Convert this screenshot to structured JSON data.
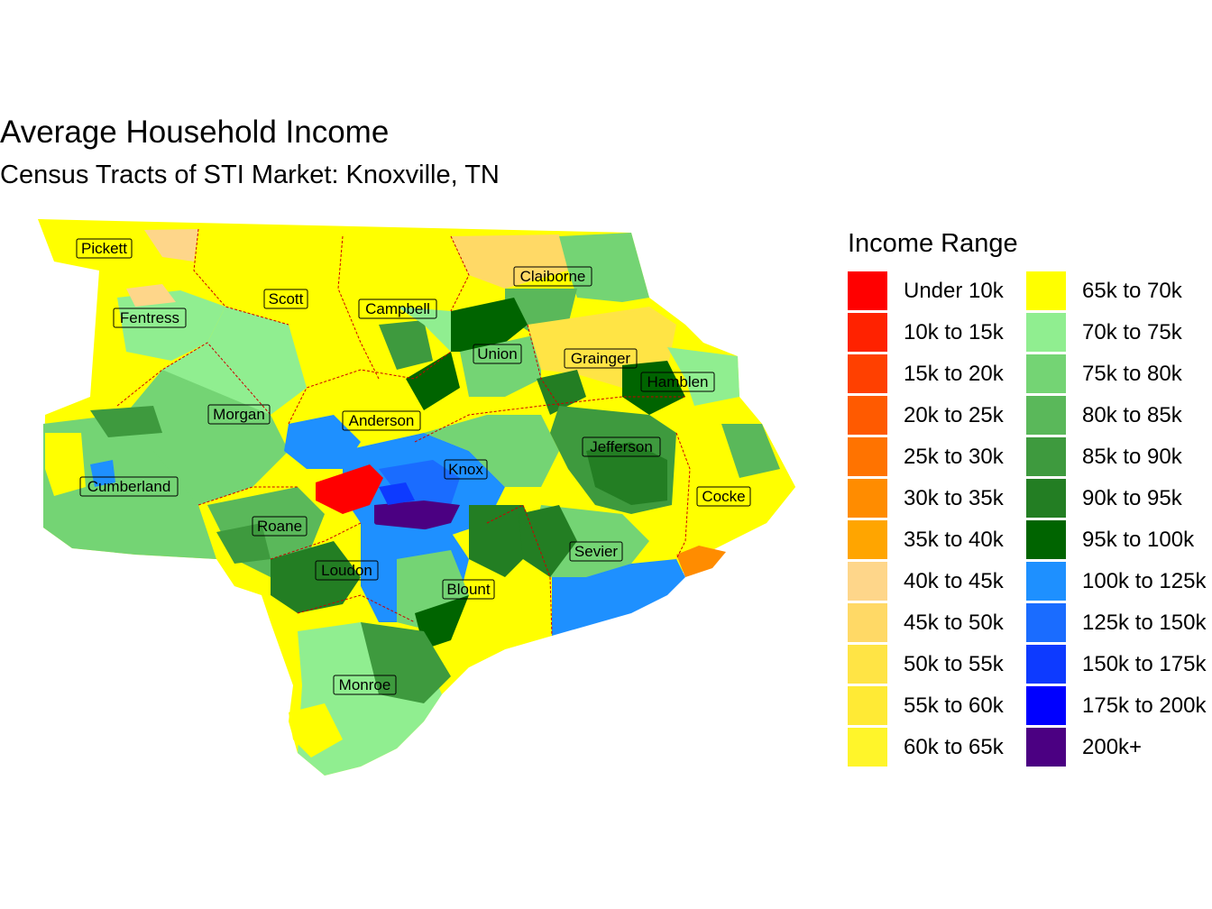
{
  "title": "Average Household Income",
  "subtitle": "Census Tracts of STI Market: Knoxville, TN",
  "legend": {
    "title": "Income Range",
    "items": [
      {
        "label": "Under 10k",
        "color": "#ff0000"
      },
      {
        "label": "10k to 15k",
        "color": "#ff2200"
      },
      {
        "label": "15k to 20k",
        "color": "#ff4000"
      },
      {
        "label": "20k to 25k",
        "color": "#ff5a00"
      },
      {
        "label": "25k to 30k",
        "color": "#ff7300"
      },
      {
        "label": "30k to 35k",
        "color": "#ff8c00"
      },
      {
        "label": "35k to 40k",
        "color": "#ffa500"
      },
      {
        "label": "40k to 45k",
        "color": "#fed68a"
      },
      {
        "label": "45k to 50k",
        "color": "#ffd966"
      },
      {
        "label": "50k to 55k",
        "color": "#ffe445"
      },
      {
        "label": "55k to 60k",
        "color": "#ffea35"
      },
      {
        "label": "60k to 65k",
        "color": "#fff52a"
      },
      {
        "label": "65k to 70k",
        "color": "#ffff00"
      },
      {
        "label": "70k to 75k",
        "color": "#90ee90"
      },
      {
        "label": "75k to 80k",
        "color": "#74d474"
      },
      {
        "label": "80k to 85k",
        "color": "#5ab85a"
      },
      {
        "label": "85k to 90k",
        "color": "#3e9a3e"
      },
      {
        "label": "90k to 95k",
        "color": "#237e23"
      },
      {
        "label": "95k to 100k",
        "color": "#006400"
      },
      {
        "label": "100k to 125k",
        "color": "#1e90ff"
      },
      {
        "label": "125k to 150k",
        "color": "#1a6cff"
      },
      {
        "label": "150k to 175k",
        "color": "#0d3aff"
      },
      {
        "label": "175k to 200k",
        "color": "#0000ff"
      },
      {
        "label": "200k+",
        "color": "#4b0082"
      }
    ]
  },
  "counties": [
    "Pickett",
    "Scott",
    "Claiborne",
    "Fentress",
    "Campbell",
    "Union",
    "Grainger",
    "Hamblen",
    "Morgan",
    "Anderson",
    "Knox",
    "Jefferson",
    "Cumberland",
    "Cocke",
    "Roane",
    "Sevier",
    "Loudon",
    "Blount",
    "Monroe"
  ],
  "colors": {
    "county_border": "#cc0000",
    "label_fill": "#ffffff",
    "label_stroke": "#000000"
  }
}
